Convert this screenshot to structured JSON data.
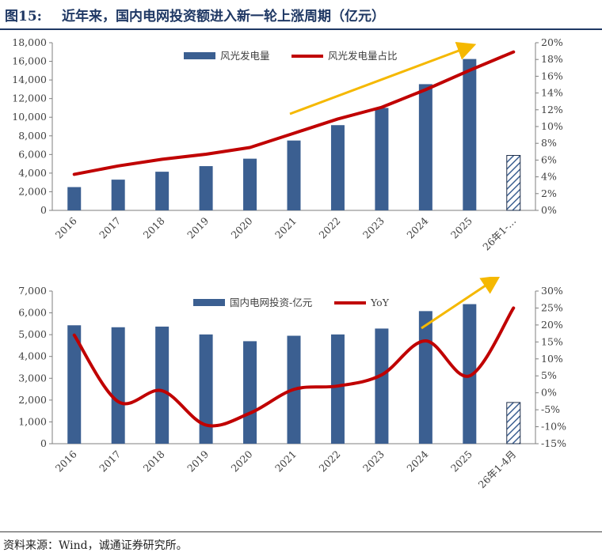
{
  "header": {
    "figure_no": "图15:",
    "title": "近年来，国内电网投资额进入新一轮上涨周期（亿元）"
  },
  "footer": {
    "source": "资料来源：Wind，诚通证券研究所。"
  },
  "colors": {
    "bar": "#3b5f91",
    "line": "#c00000",
    "arrow": "#f5b800",
    "title": "#1f3864"
  },
  "chart_data": [
    {
      "type": "bar",
      "categories": [
        "2016",
        "2017",
        "2018",
        "2019",
        "2020",
        "2021",
        "2022",
        "2023",
        "2024",
        "2025",
        "26年1-…"
      ],
      "series": [
        {
          "name": "风光发电量",
          "type": "bar",
          "axis": "left",
          "values": [
            2500,
            3300,
            4150,
            4750,
            5550,
            7500,
            9150,
            11000,
            13550,
            16250,
            5900
          ],
          "hatched_last": true
        },
        {
          "name": "风光发电量占比",
          "type": "line",
          "axis": "right",
          "values": [
            4.3,
            5.3,
            6.1,
            6.7,
            7.5,
            9.2,
            10.9,
            12.3,
            14.4,
            16.7,
            18.9
          ]
        }
      ],
      "y_left": {
        "min": 0,
        "max": 18000,
        "step": 2000,
        "ticks": [
          "0",
          "2,000",
          "4,000",
          "6,000",
          "8,000",
          "10,000",
          "12,000",
          "14,000",
          "16,000",
          "18,000"
        ]
      },
      "y_right": {
        "min": 0,
        "max": 20,
        "step": 2,
        "ticks": [
          "0%",
          "2%",
          "4%",
          "6%",
          "8%",
          "10%",
          "12%",
          "14%",
          "16%",
          "18%",
          "20%"
        ]
      },
      "legend_position": "top",
      "trend_arrow": true
    },
    {
      "type": "bar",
      "categories": [
        "2016",
        "2017",
        "2018",
        "2019",
        "2020",
        "2021",
        "2022",
        "2023",
        "2024",
        "2025",
        "26年1-4月"
      ],
      "series": [
        {
          "name": "国内电网投资-亿元",
          "type": "bar",
          "axis": "left",
          "values": [
            5430,
            5340,
            5370,
            5010,
            4700,
            4950,
            5010,
            5280,
            6080,
            6400,
            1890
          ],
          "hatched_last": true
        },
        {
          "name": "YoY",
          "type": "line",
          "axis": "right",
          "values": [
            17,
            -2.6,
            0.6,
            -9.5,
            -6,
            1,
            2,
            5.3,
            15.3,
            5,
            25
          ]
        }
      ],
      "y_left": {
        "min": 0,
        "max": 7000,
        "step": 1000,
        "ticks": [
          "0",
          "1,000",
          "2,000",
          "3,000",
          "4,000",
          "5,000",
          "6,000",
          "7,000"
        ]
      },
      "y_right": {
        "min": -15,
        "max": 30,
        "step": 5,
        "ticks": [
          "-15%",
          "-10%",
          "-5%",
          "0%",
          "5%",
          "10%",
          "15%",
          "20%",
          "25%",
          "30%"
        ]
      },
      "legend_position": "top",
      "trend_arrow": true
    }
  ]
}
